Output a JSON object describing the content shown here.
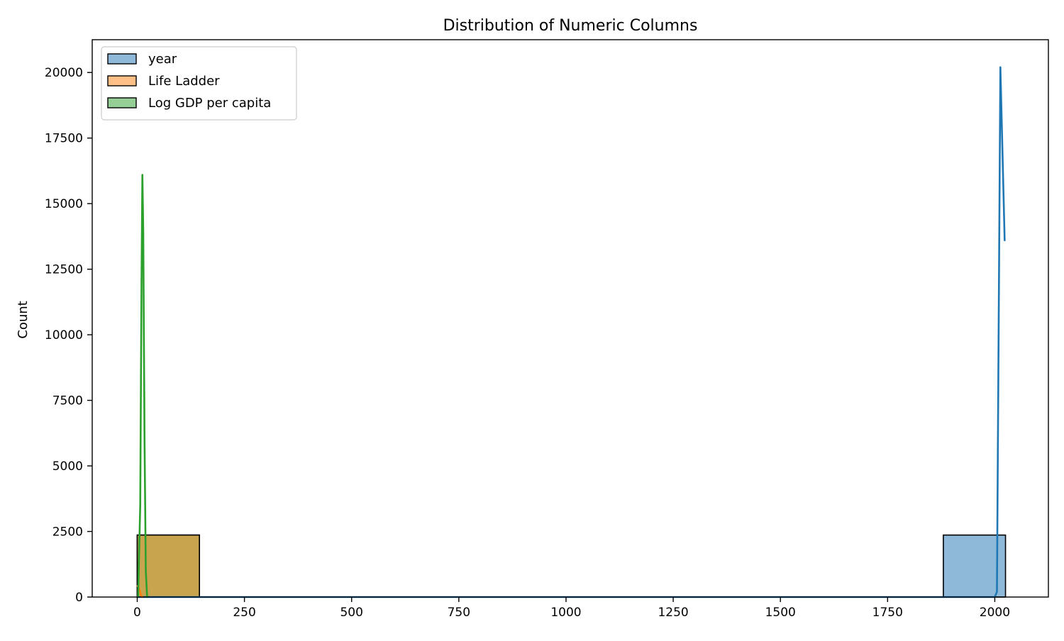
{
  "chart_data": {
    "type": "histogram",
    "title": "Distribution of Numeric Columns",
    "xlabel": "",
    "ylabel": "Count",
    "xlim": [
      -105,
      2125
    ],
    "ylim": [
      0,
      21250
    ],
    "x_ticks": [
      0,
      250,
      500,
      750,
      1000,
      1250,
      1500,
      1750,
      2000
    ],
    "y_ticks": [
      0,
      2500,
      5000,
      7500,
      10000,
      12500,
      15000,
      17500,
      20000
    ],
    "grid": false,
    "legend": {
      "position": "top-left",
      "entries": [
        "year",
        "Life Ladder",
        "Log GDP per capita"
      ]
    },
    "series": [
      {
        "name": "year",
        "color": "#1f77b4",
        "fill": "#8fb9d9",
        "bars": [
          {
            "x0": 1880,
            "x1": 2025,
            "count": 2363
          }
        ],
        "kde": [
          [
            0,
            0
          ],
          [
            1880,
            0
          ],
          [
            1950,
            0
          ],
          [
            1985,
            0
          ],
          [
            2000,
            0
          ],
          [
            2005,
            200
          ],
          [
            2013,
            20200
          ],
          [
            2023,
            13600
          ]
        ]
      },
      {
        "name": "Life Ladder",
        "color": "#ff7f0e",
        "fill": "#ffbf86",
        "bars": [
          {
            "x0": 0,
            "x1": 145,
            "count": 2363
          }
        ],
        "kde": [
          [
            1,
            420
          ],
          [
            3,
            380
          ],
          [
            6,
            250
          ],
          [
            9,
            60
          ],
          [
            12,
            0
          ]
        ]
      },
      {
        "name": "Log GDP per capita",
        "color": "#2ca02c",
        "fill": "#95cf95",
        "bars": [
          {
            "x0": 0,
            "x1": 145,
            "count": 2363
          }
        ],
        "kde": [
          [
            2,
            0
          ],
          [
            7,
            3500
          ],
          [
            10,
            12000
          ],
          [
            12,
            16100
          ],
          [
            14,
            14000
          ],
          [
            17,
            6000
          ],
          [
            20,
            1000
          ],
          [
            23,
            0
          ]
        ]
      }
    ],
    "overlap_fill": "#c8a44e"
  }
}
